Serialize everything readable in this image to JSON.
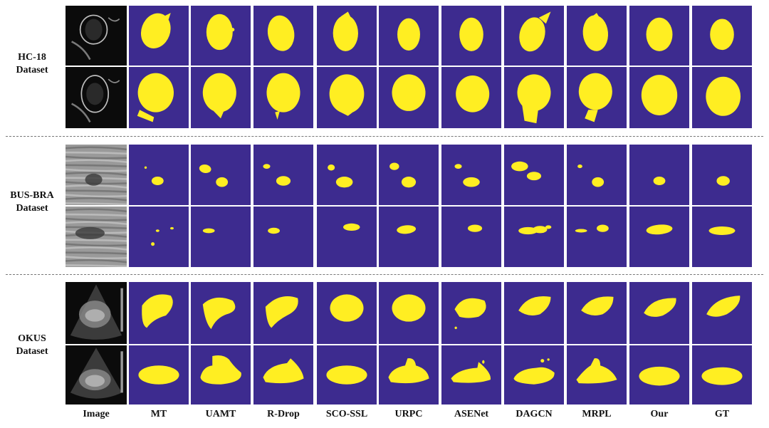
{
  "figure": {
    "datasets": [
      {
        "id": "hc18",
        "name_line1": "HC-18",
        "name_line2": "Dataset"
      },
      {
        "id": "busbra",
        "name_line1": "BUS-BRA",
        "name_line2": "Dataset"
      },
      {
        "id": "okus",
        "name_line1": "OKUS",
        "name_line2": "Dataset"
      }
    ],
    "columns": [
      "Image",
      "MT",
      "UAMT",
      "R-Drop",
      "SCO-SSL",
      "URPC",
      "ASENet",
      "DAGCN",
      "MRPL",
      "Our",
      "GT"
    ],
    "colors": {
      "background_mask": "#3d2b8f",
      "foreground_mask": "#ffee22",
      "tile_border": "#ffffff",
      "ultrasound_dark": "#0b0b0b",
      "ultrasound_light": "#9a9a9a"
    }
  }
}
